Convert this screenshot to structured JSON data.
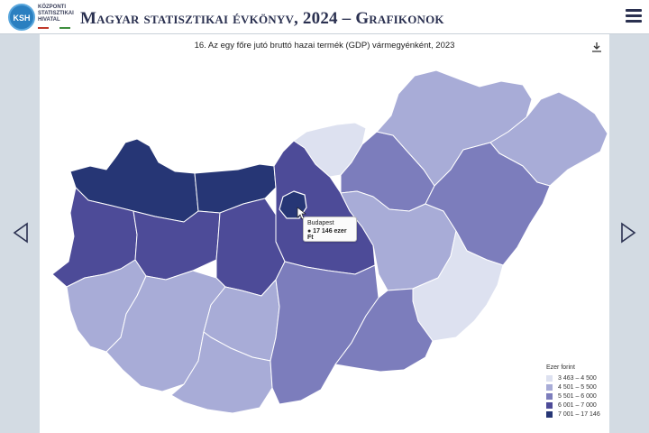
{
  "header": {
    "logo_text": "KSH",
    "org_lines": [
      "KÖZPONTI",
      "STATISZTIKAI",
      "HIVATAL"
    ],
    "title": "Magyar statisztikai évkönyv, 2024 – Grafikonok",
    "menu_icon": "hamburger-menu-icon"
  },
  "navigation": {
    "prev_icon": "triangle-left-icon",
    "next_icon": "triangle-right-icon"
  },
  "chart": {
    "title": "16. Az egy főre jutó bruttó hazai termék (GDP) vármegyénként, 2023",
    "download_icon": "download-icon"
  },
  "tooltip": {
    "name": "Budapest",
    "value": "● 17 146 ezer Ft"
  },
  "legend": {
    "title": "Ezer forint",
    "items": [
      {
        "label": "3 463 –   4 500",
        "color": "#dde1f0"
      },
      {
        "label": "4 501 –   5 500",
        "color": "#a8acd7"
      },
      {
        "label": "5 501 –   6 000",
        "color": "#7c7dbc"
      },
      {
        "label": "6 001 –   7 000",
        "color": "#4d4b98"
      },
      {
        "label": "7 001 – 17 146",
        "color": "#263675"
      }
    ]
  },
  "chart_data": {
    "type": "map",
    "title": "16. Az egy főre jutó bruttó hazai termék (GDP) vármegyénként, 2023",
    "unit": "Ezer forint",
    "highlighted": {
      "name": "Budapest",
      "value": 17146
    },
    "classes": [
      "3 463 –   4 500",
      "4 501 –   5 500",
      "5 501 –   6 000",
      "6 001 –   7 000",
      "7 001 – 17 146"
    ]
  }
}
